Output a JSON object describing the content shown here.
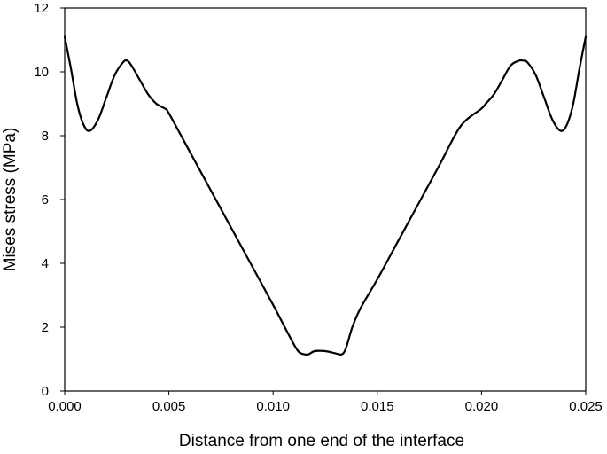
{
  "chart_data": {
    "type": "line",
    "title": "",
    "xlabel": "Distance from one end of the interface",
    "ylabel": "Mises stress (MPa)",
    "xlim": [
      0,
      0.025
    ],
    "ylim": [
      0,
      12
    ],
    "x_ticks": [
      0,
      0.005,
      0.01,
      0.015,
      0.02,
      0.025
    ],
    "x_tick_labels": [
      "0.000",
      "0.005",
      "0.010",
      "0.015",
      "0.020",
      "0.025"
    ],
    "y_ticks": [
      0,
      2,
      4,
      6,
      8,
      10,
      12
    ],
    "y_tick_labels": [
      "0",
      "2",
      "4",
      "6",
      "8",
      "10",
      "12"
    ],
    "grid": false,
    "legend": "none",
    "line_color": "#000000",
    "series": [
      {
        "x": [
          0.0,
          0.0003,
          0.0006,
          0.0009,
          0.0012,
          0.0016,
          0.002,
          0.0024,
          0.0028,
          0.003,
          0.0032,
          0.0036,
          0.004,
          0.0044,
          0.0048,
          0.005,
          0.006,
          0.007,
          0.008,
          0.009,
          0.01,
          0.0108,
          0.0112,
          0.0115,
          0.0117,
          0.012,
          0.0125,
          0.013,
          0.0133,
          0.0135,
          0.0138,
          0.0142,
          0.015,
          0.016,
          0.017,
          0.018,
          0.019,
          0.02,
          0.0202,
          0.0206,
          0.021,
          0.0214,
          0.0218,
          0.022,
          0.0222,
          0.0226,
          0.023,
          0.0234,
          0.0238,
          0.0241,
          0.0244,
          0.0247,
          0.025
        ],
        "y": [
          11.1,
          10.1,
          9.0,
          8.35,
          8.15,
          8.5,
          9.2,
          9.9,
          10.3,
          10.35,
          10.2,
          9.75,
          9.3,
          9.0,
          8.85,
          8.7,
          7.5,
          6.3,
          5.1,
          3.9,
          2.7,
          1.7,
          1.25,
          1.15,
          1.15,
          1.25,
          1.25,
          1.18,
          1.15,
          1.35,
          2.0,
          2.6,
          3.5,
          4.7,
          5.9,
          7.1,
          8.3,
          8.85,
          9.0,
          9.3,
          9.75,
          10.2,
          10.35,
          10.35,
          10.3,
          9.9,
          9.2,
          8.5,
          8.15,
          8.35,
          9.0,
          10.1,
          11.1
        ]
      }
    ]
  }
}
